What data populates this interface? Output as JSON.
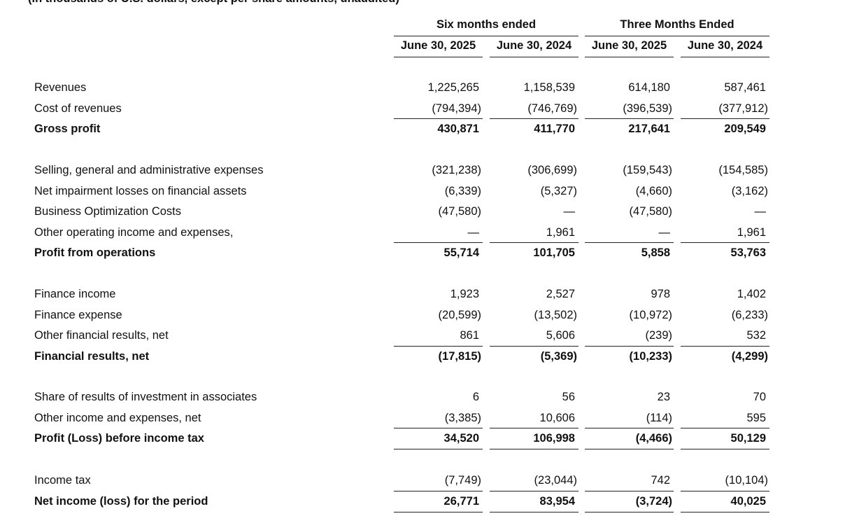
{
  "note": "(In thousands of U.S. dollars, except per share amounts, unaudited)",
  "header": {
    "groups": [
      "Six months ended",
      "Three Months Ended"
    ],
    "columns": [
      "June 30, 2025",
      "June 30, 2024",
      "June 30, 2025",
      "June 30, 2024"
    ]
  },
  "sections": [
    {
      "rows": [
        {
          "label": "Revenues",
          "values": [
            "1,225,265",
            "1,158,539",
            "614,180",
            "587,461"
          ]
        },
        {
          "label": "Cost of revenues",
          "values": [
            "(794,394)",
            "(746,769)",
            "(396,539)",
            "(377,912)"
          ]
        },
        {
          "label": "Gross profit",
          "bold": true,
          "values": [
            "430,871",
            "411,770",
            "217,641",
            "209,549"
          ]
        }
      ]
    },
    {
      "rows": [
        {
          "label": "Selling, general and administrative expenses",
          "values": [
            "(321,238)",
            "(306,699)",
            "(159,543)",
            "(154,585)"
          ]
        },
        {
          "label": "Net impairment losses on financial assets",
          "values": [
            "(6,339)",
            "(5,327)",
            "(4,660)",
            "(3,162)"
          ]
        },
        {
          "label": "Business Optimization Costs",
          "values": [
            "(47,580)",
            "—",
            "(47,580)",
            "—"
          ]
        },
        {
          "label": "Other operating income and expenses,",
          "values": [
            "—",
            "1,961",
            "—",
            "1,961"
          ]
        },
        {
          "label": "Profit from operations",
          "bold": true,
          "values": [
            "55,714",
            "101,705",
            "5,858",
            "53,763"
          ]
        }
      ]
    },
    {
      "rows": [
        {
          "label": "Finance income",
          "values": [
            "1,923",
            "2,527",
            "978",
            "1,402"
          ]
        },
        {
          "label": "Finance expense",
          "values": [
            "(20,599)",
            "(13,502)",
            "(10,972)",
            "(6,233)"
          ]
        },
        {
          "label": "Other financial results, net",
          "values": [
            "861",
            "5,606",
            "(239)",
            "532"
          ]
        },
        {
          "label": "Financial results, net",
          "bold": true,
          "values": [
            "(17,815)",
            "(5,369)",
            "(10,233)",
            "(4,299)"
          ]
        }
      ]
    },
    {
      "rows": [
        {
          "label": "Share of results of investment in associates",
          "values": [
            "6",
            "56",
            "23",
            "70"
          ]
        },
        {
          "label": "Other income and expenses, net",
          "values": [
            "(3,385)",
            "10,606",
            "(114)",
            "595"
          ]
        },
        {
          "label": "Profit (Loss) before income tax",
          "bold": true,
          "underline": true,
          "values": [
            "34,520",
            "106,998",
            "(4,466)",
            "50,129"
          ]
        }
      ]
    },
    {
      "rows": [
        {
          "label": "Income tax",
          "values": [
            "(7,749)",
            "(23,044)",
            "742",
            "(10,104)"
          ]
        },
        {
          "label": "Net income (loss) for the period",
          "bold": true,
          "underline": true,
          "values": [
            "26,771",
            "83,954",
            "(3,724)",
            "40,025"
          ]
        }
      ]
    }
  ]
}
